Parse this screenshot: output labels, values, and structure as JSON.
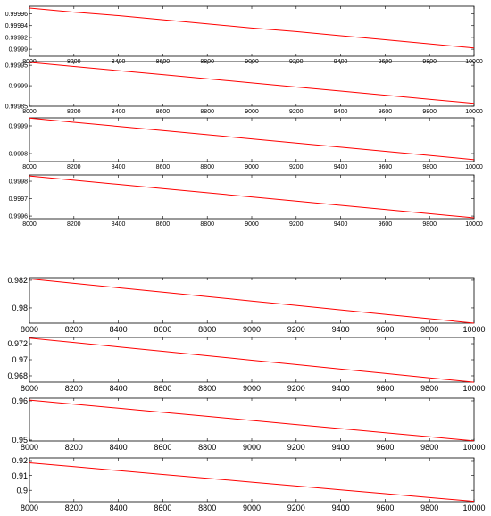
{
  "chart_data": [
    {
      "type": "line",
      "x": [
        8000,
        8200,
        8400,
        8600,
        8800,
        9000,
        9200,
        9400,
        9600,
        9800,
        10000
      ],
      "values": [
        0.99997,
        0.999963,
        0.999957,
        0.99995,
        0.999943,
        0.999936,
        0.99993,
        0.999923,
        0.999916,
        0.999909,
        0.999902
      ],
      "color": "#ff0000",
      "xlim": [
        8000,
        10000
      ],
      "xticks": [
        8000,
        8200,
        8400,
        8600,
        8800,
        9000,
        9200,
        9400,
        9600,
        9800,
        10000
      ],
      "ylim": [
        0.999888,
        0.999973
      ],
      "yticks": [
        0.9999,
        0.99992,
        0.99994,
        0.99996
      ]
    },
    {
      "type": "line",
      "x": [
        8000,
        8200,
        8400,
        8600,
        8800,
        9000,
        9200,
        9400,
        9600,
        9800,
        10000
      ],
      "values": [
        0.999957,
        0.999947,
        0.999937,
        0.999927,
        0.999917,
        0.999907,
        0.999897,
        0.999887,
        0.999877,
        0.999867,
        0.999857
      ],
      "color": "#ff0000",
      "xlim": [
        8000,
        10000
      ],
      "xticks": [
        8000,
        8200,
        8400,
        8600,
        8800,
        9000,
        9200,
        9400,
        9600,
        9800,
        10000
      ],
      "ylim": [
        0.99985,
        0.999959
      ],
      "yticks": [
        0.99985,
        0.9999,
        0.99995
      ]
    },
    {
      "type": "line",
      "x": [
        8000,
        8200,
        8400,
        8600,
        8800,
        9000,
        9200,
        9400,
        9600,
        9800,
        10000
      ],
      "values": [
        0.999928,
        0.999913,
        0.999898,
        0.999883,
        0.999868,
        0.999853,
        0.999838,
        0.999823,
        0.999808,
        0.999793,
        0.999778
      ],
      "color": "#ff0000",
      "xlim": [
        8000,
        10000
      ],
      "xticks": [
        8000,
        8200,
        8400,
        8600,
        8800,
        9000,
        9200,
        9400,
        9600,
        9800,
        10000
      ],
      "ylim": [
        0.999771,
        0.999929
      ],
      "yticks": [
        0.9998,
        0.9999
      ]
    },
    {
      "type": "line",
      "x": [
        8000,
        8200,
        8400,
        8600,
        8800,
        9000,
        9200,
        9400,
        9600,
        9800,
        10000
      ],
      "values": [
        0.99983,
        0.999806,
        0.999782,
        0.999758,
        0.999734,
        0.99971,
        0.999686,
        0.999662,
        0.999638,
        0.999614,
        0.99959
      ],
      "color": "#ff0000",
      "xlim": [
        8000,
        10000
      ],
      "xticks": [
        8000,
        8200,
        8400,
        8600,
        8800,
        9000,
        9200,
        9400,
        9600,
        9800,
        10000
      ],
      "ylim": [
        0.999585,
        0.999836
      ],
      "yticks": [
        0.9996,
        0.9997,
        0.9998
      ]
    },
    {
      "type": "line",
      "x": [
        8000,
        8200,
        8400,
        8600,
        8800,
        9000,
        9200,
        9400,
        9600,
        9800,
        10000
      ],
      "values": [
        0.9821,
        0.98178,
        0.98146,
        0.98114,
        0.98082,
        0.9805,
        0.98018,
        0.97986,
        0.97954,
        0.97922,
        0.9789
      ],
      "color": "#ff0000",
      "xlim": [
        8000,
        10000
      ],
      "xticks": [
        8000,
        8200,
        8400,
        8600,
        8800,
        9000,
        9200,
        9400,
        9600,
        9800,
        10000
      ],
      "ylim": [
        0.9789,
        0.98219
      ],
      "yticks": [
        0.98,
        0.982
      ]
    },
    {
      "type": "line",
      "x": [
        8000,
        8200,
        8400,
        8600,
        8800,
        9000,
        9200,
        9400,
        9600,
        9800,
        10000
      ],
      "values": [
        0.9727,
        0.97215,
        0.9716,
        0.97105,
        0.9705,
        0.96995,
        0.9694,
        0.96885,
        0.9683,
        0.96775,
        0.9672
      ],
      "color": "#ff0000",
      "xlim": [
        8000,
        10000
      ],
      "xticks": [
        8000,
        8200,
        8400,
        8600,
        8800,
        9000,
        9200,
        9400,
        9600,
        9800,
        10000
      ],
      "ylim": [
        0.96722,
        0.97278
      ],
      "yticks": [
        0.968,
        0.97,
        0.972
      ]
    },
    {
      "type": "line",
      "x": [
        8000,
        8200,
        8400,
        8600,
        8800,
        9000,
        9200,
        9400,
        9600,
        9800,
        10000
      ],
      "values": [
        0.9602,
        0.95916,
        0.95812,
        0.95708,
        0.95604,
        0.955,
        0.95396,
        0.95292,
        0.95188,
        0.95084,
        0.9498
      ],
      "color": "#ff0000",
      "xlim": [
        8000,
        10000
      ],
      "xticks": [
        8000,
        8200,
        8400,
        8600,
        8800,
        9000,
        9200,
        9400,
        9600,
        9800,
        10000
      ],
      "ylim": [
        0.94977,
        0.96068
      ],
      "yticks": [
        0.95,
        0.96
      ]
    },
    {
      "type": "line",
      "x": [
        8000,
        8200,
        8400,
        8600,
        8800,
        9000,
        9200,
        9400,
        9600,
        9800,
        10000
      ],
      "values": [
        0.9185,
        0.9159,
        0.9133,
        0.9107,
        0.9081,
        0.9055,
        0.9029,
        0.9003,
        0.8977,
        0.8951,
        0.8925
      ],
      "color": "#ff0000",
      "xlim": [
        8000,
        10000
      ],
      "xticks": [
        8000,
        8200,
        8400,
        8600,
        8800,
        9000,
        9200,
        9400,
        9600,
        9800,
        10000
      ],
      "ylim": [
        0.8923,
        0.9218
      ],
      "yticks": [
        0.9,
        0.91,
        0.92
      ]
    }
  ]
}
